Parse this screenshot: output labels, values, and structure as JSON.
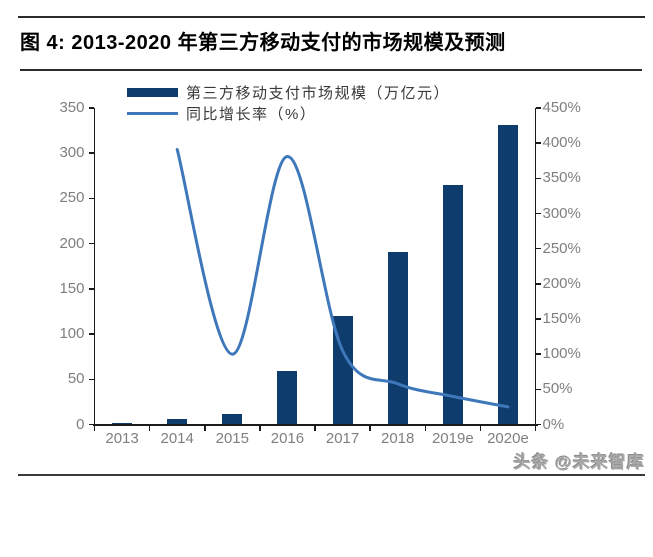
{
  "page": {
    "watermark": "头条 @未来智库"
  },
  "chart_data": {
    "type": "bar",
    "subtype": "combo-bar-line-dual-axis",
    "title": "图 4:  2013-2020 年第三方移动支付的市场规模及预测",
    "categories": [
      "2013",
      "2014",
      "2015",
      "2016",
      "2017",
      "2018",
      "2019e",
      "2020e"
    ],
    "series": [
      {
        "name": "第三方移动支付市场规模（万亿元）",
        "type": "bar",
        "axis": "left",
        "color": "#0e3c6d",
        "values": [
          1.2,
          6,
          12,
          58.8,
          120,
          190.5,
          265,
          331
        ]
      },
      {
        "name": "同比增长率（%）",
        "type": "line",
        "axis": "right",
        "color": "#3e78bb",
        "values": [
          null,
          391,
          100,
          381,
          105,
          58,
          40,
          25
        ]
      }
    ],
    "left_axis": {
      "min": 0,
      "max": 350,
      "step": 50,
      "ticks": [
        "0",
        "50",
        "100",
        "150",
        "200",
        "250",
        "300",
        "350"
      ]
    },
    "right_axis": {
      "min": 0,
      "max": 450,
      "step": 50,
      "ticks": [
        "0%",
        "50%",
        "100%",
        "150%",
        "200%",
        "250%",
        "300%",
        "350%",
        "400%",
        "450%"
      ]
    },
    "grid": false,
    "legend_position": "top-left-inside",
    "axis_text_color": "#7f7f7f",
    "axis_line_color": "#1a1a1a"
  }
}
